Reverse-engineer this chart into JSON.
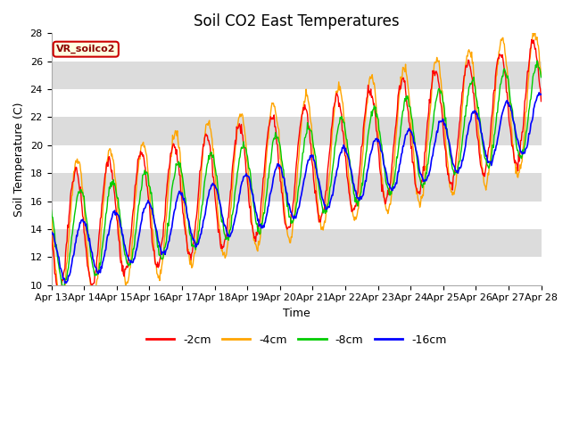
{
  "title": "Soil CO2 East Temperatures",
  "xlabel": "Time",
  "ylabel": "Soil Temperature (C)",
  "ylim": [
    10,
    28
  ],
  "colors": {
    "-2cm": "#FF0000",
    "-4cm": "#FFA500",
    "-8cm": "#00CC00",
    "-16cm": "#0000FF"
  },
  "legend_label": "VR_soilco2",
  "legend_bg": "#FFFFE0",
  "legend_edge": "#CC0000",
  "band_colors": [
    "#FFFFFF",
    "#DCDCDC"
  ],
  "title_fontsize": 12,
  "axis_label_fontsize": 9,
  "tick_fontsize": 8,
  "tick_labels": [
    "Apr 13",
    "Apr 14",
    "Apr 15",
    "Apr 16",
    "Apr 17",
    "Apr 18",
    "Apr 19",
    "Apr 20",
    "Apr 21",
    "Apr 22",
    "Apr 23",
    "Apr 24",
    "Apr 25",
    "Apr 26",
    "Apr 27",
    "Apr 28"
  ],
  "figsize": [
    6.4,
    4.8
  ],
  "dpi": 100
}
